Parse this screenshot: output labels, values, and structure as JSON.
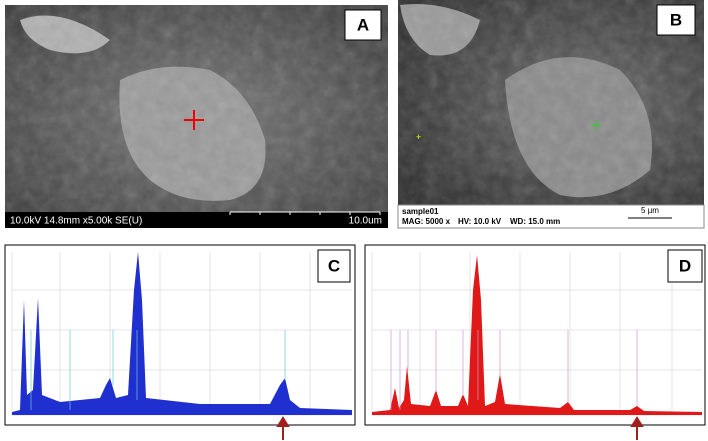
{
  "panels": [
    {
      "label": "A",
      "info": "10.0kV 14.8mm x5.00k SE(U)",
      "scale": "10.0um"
    },
    {
      "label": "B",
      "sample": "sample01",
      "mag": "MAG: 5000 x",
      "hv": "HV: 10.0 kV",
      "wd": "WD: 15.0 mm",
      "scale": "5 µm"
    },
    {
      "label": "C"
    },
    {
      "label": "D"
    }
  ]
}
